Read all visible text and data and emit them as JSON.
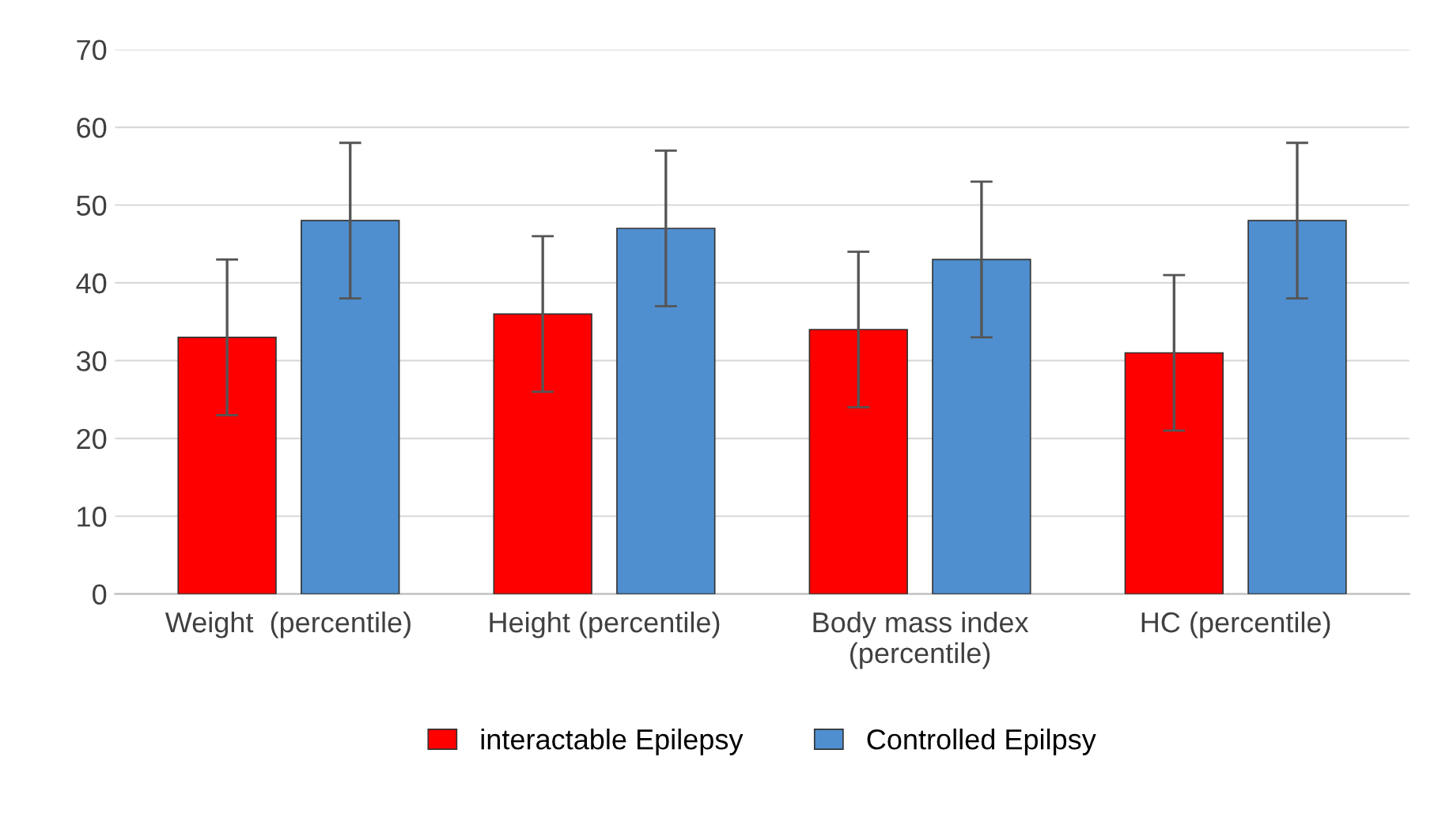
{
  "chart_data": {
    "type": "bar",
    "categories": [
      "Weight  (percentile)",
      "Height (percentile)",
      "Body mass index\n(percentile)",
      "HC (percentile)"
    ],
    "series": [
      {
        "name": "interactable Epilepsy",
        "color": "#ff0000",
        "values": [
          33,
          36,
          34,
          31
        ],
        "errors": [
          10,
          10,
          10,
          10
        ]
      },
      {
        "name": "Controlled Epilpsy",
        "color": "#4f8fd0",
        "values": [
          48,
          47,
          43,
          48
        ],
        "errors": [
          10,
          10,
          10,
          10
        ]
      }
    ],
    "ylim": [
      0,
      70
    ],
    "yticks": [
      0,
      10,
      20,
      30,
      40,
      50,
      60,
      70
    ],
    "grid": "y",
    "legend": "bottom"
  }
}
